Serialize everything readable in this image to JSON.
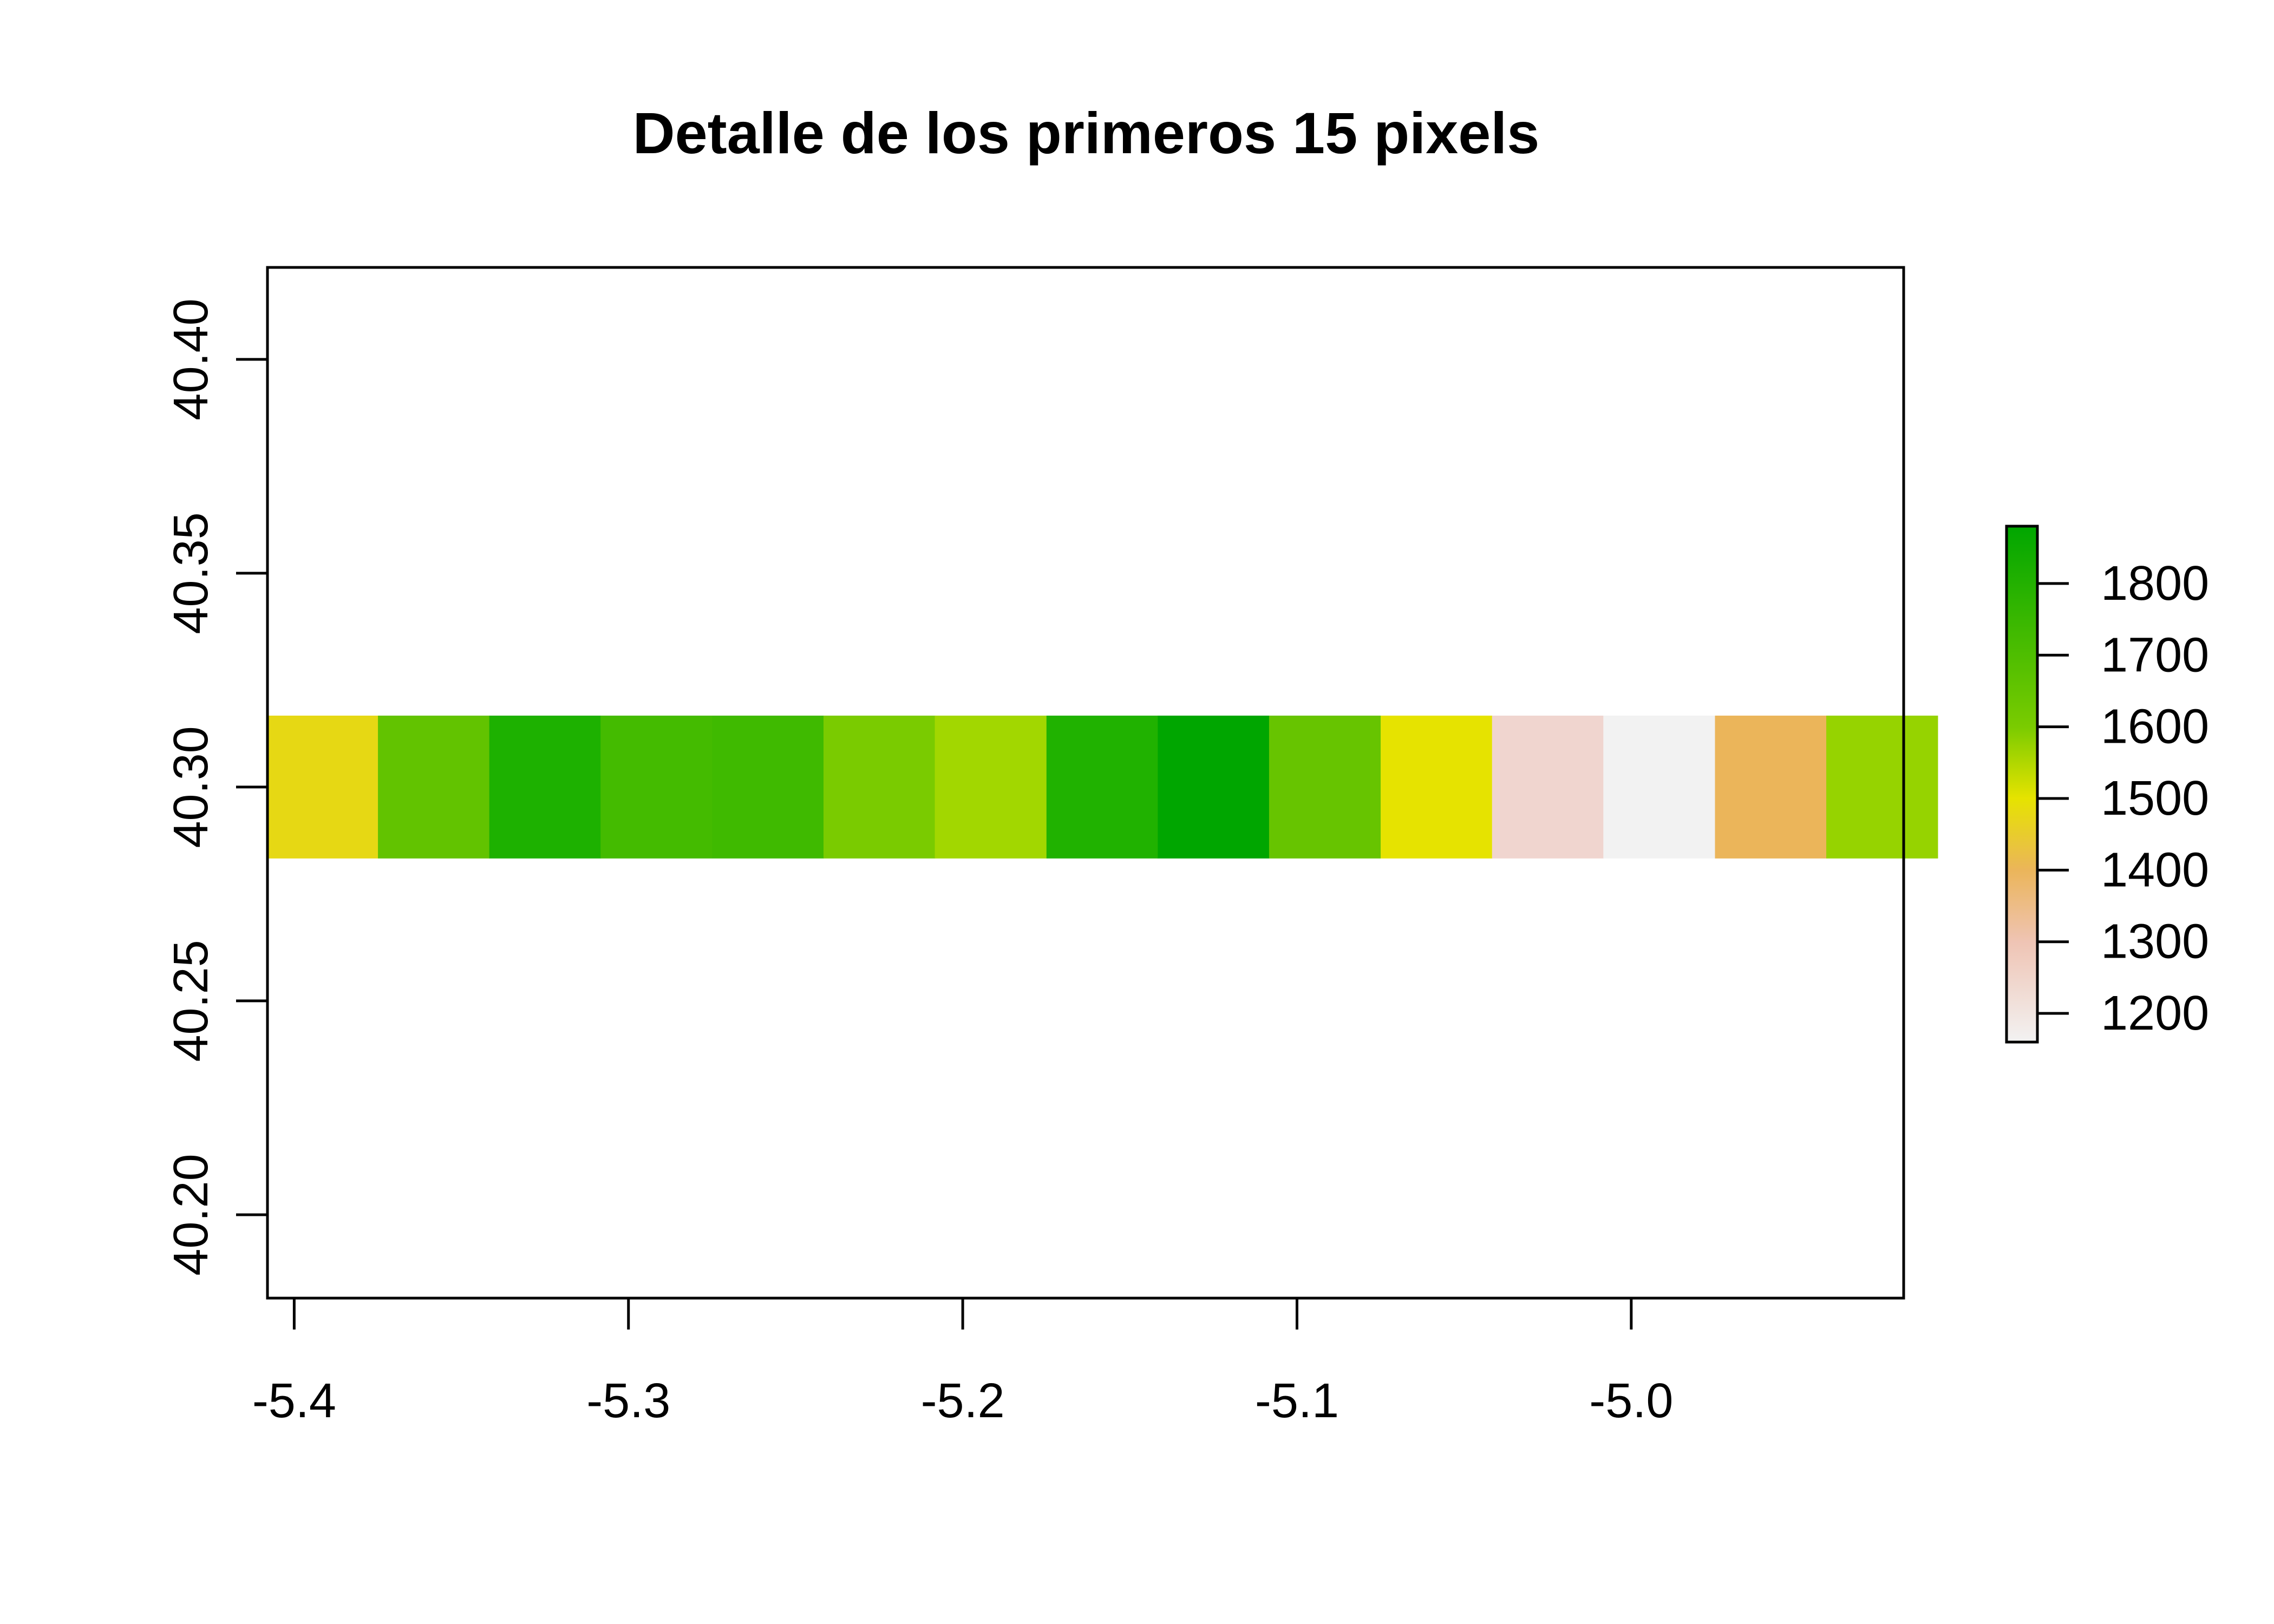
{
  "chart_data": {
    "type": "heatmap",
    "title": "Detalle de los primeros 15 pixels",
    "xlabel": "",
    "ylabel": "",
    "xlim": [
      -5.408,
      -4.9185
    ],
    "ylim": [
      40.1805,
      40.4215
    ],
    "x_ticks": [
      -5.4,
      -5.3,
      -5.2,
      -5.1,
      -5.0
    ],
    "x_tick_labels": [
      "-5.4",
      "-5.3",
      "-5.2",
      "-5.1",
      "-5.0"
    ],
    "y_ticks": [
      40.2,
      40.25,
      40.3,
      40.35,
      40.4
    ],
    "y_tick_labels": [
      "40.20",
      "40.25",
      "40.30",
      "40.35",
      "40.40"
    ],
    "cell_width": 0.0333,
    "row_ymin": 40.2833,
    "row_ymax": 40.3167,
    "cells": [
      {
        "x": -5.3917,
        "value": 1470,
        "color": "#E6D814"
      },
      {
        "x": -5.3583,
        "value": 1640,
        "color": "#62C300"
      },
      {
        "x": -5.325,
        "value": 1790,
        "color": "#1DB100"
      },
      {
        "x": -5.2917,
        "value": 1700,
        "color": "#44BB00"
      },
      {
        "x": -5.2583,
        "value": 1710,
        "color": "#3FBA00"
      },
      {
        "x": -5.225,
        "value": 1610,
        "color": "#7ACB00"
      },
      {
        "x": -5.1917,
        "value": 1570,
        "color": "#A2D700"
      },
      {
        "x": -5.1583,
        "value": 1780,
        "color": "#20B200"
      },
      {
        "x": -5.125,
        "value": 1860,
        "color": "#00A600"
      },
      {
        "x": -5.0917,
        "value": 1640,
        "color": "#67C400"
      },
      {
        "x": -5.0583,
        "value": 1490,
        "color": "#E6E300"
      },
      {
        "x": -5.025,
        "value": 1230,
        "color": "#F0D5CF"
      },
      {
        "x": -4.9917,
        "value": 1170,
        "color": "#F2F2F2"
      },
      {
        "x": -4.9583,
        "value": 1400,
        "color": "#EBB55A"
      },
      {
        "x": -4.925,
        "value": 1580,
        "color": "#96D300"
      }
    ],
    "legend": {
      "placement": "right",
      "min": 1160,
      "max": 1880,
      "ticks": [
        1200,
        1300,
        1400,
        1500,
        1600,
        1700,
        1800
      ],
      "tick_labels": [
        "1200",
        "1300",
        "1400",
        "1500",
        "1600",
        "1700",
        "1800"
      ],
      "color_stops": [
        {
          "value": 1160,
          "color": "#F2F2F2"
        },
        {
          "value": 1300,
          "color": "#EFC4B4"
        },
        {
          "value": 1400,
          "color": "#EBB55A"
        },
        {
          "value": 1500,
          "color": "#E6E300"
        },
        {
          "value": 1600,
          "color": "#7ACB00"
        },
        {
          "value": 1880,
          "color": "#00A600"
        }
      ]
    }
  }
}
